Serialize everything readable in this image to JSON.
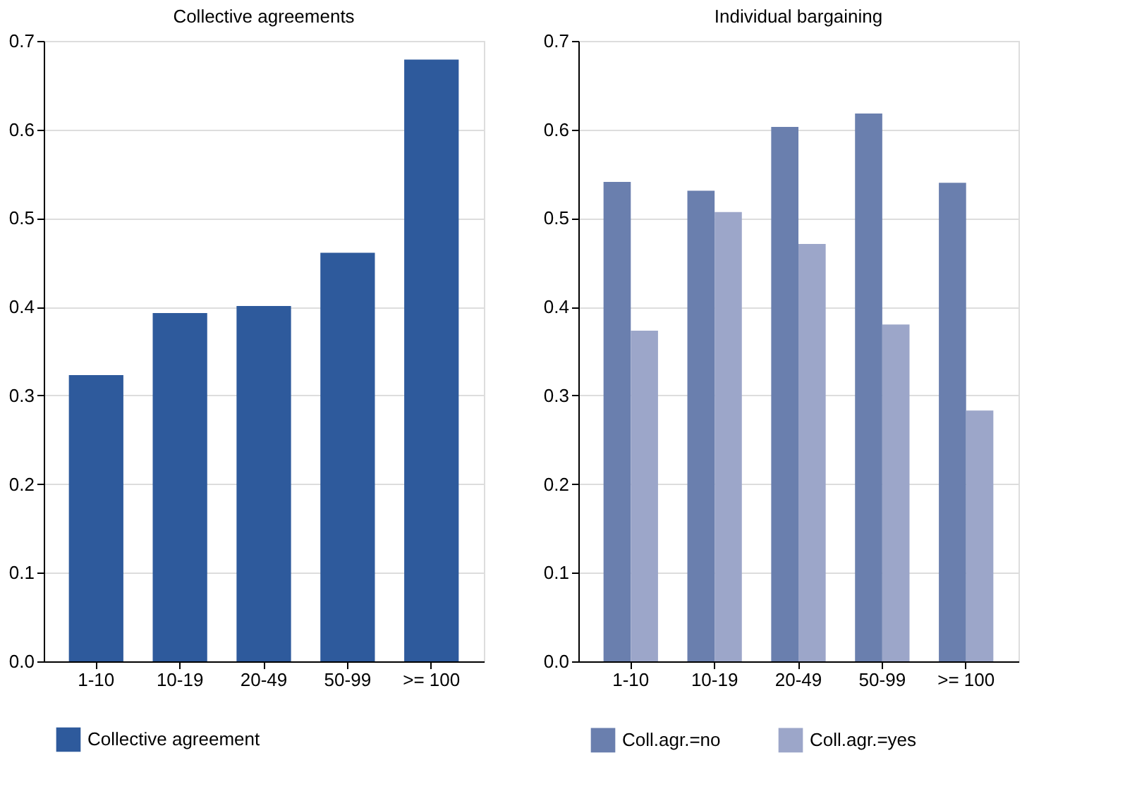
{
  "chart_data": [
    {
      "type": "bar",
      "title": "Collective agreements",
      "categories": [
        "1-10",
        "10-19",
        "20-49",
        "50-99",
        ">= 100"
      ],
      "series": [
        {
          "name": "Collective agreement",
          "color": "#2e5a9c",
          "values": [
            0.323,
            0.393,
            0.401,
            0.461,
            0.679
          ]
        }
      ],
      "ylim": [
        0,
        0.7
      ],
      "yticks": [
        {
          "value": 0,
          "label": "0.0"
        },
        {
          "value": 0.1,
          "label": "0.1"
        },
        {
          "value": 0.2,
          "label": "0.2"
        },
        {
          "value": 0.3,
          "label": "0.3"
        },
        {
          "value": 0.4,
          "label": "0.4"
        },
        {
          "value": 0.5,
          "label": "0.5"
        },
        {
          "value": 0.6,
          "label": "0.6"
        },
        {
          "value": 0.7,
          "label": "0.7"
        }
      ],
      "grid": "y",
      "legend": "bottom"
    },
    {
      "type": "bar",
      "title": "Individual bargaining",
      "categories": [
        "1-10",
        "10-19",
        "20-49",
        "50-99",
        ">= 100"
      ],
      "series": [
        {
          "name": "Coll.agr.=no",
          "color": "#6a7fae",
          "values": [
            0.541,
            0.531,
            0.603,
            0.618,
            0.54
          ]
        },
        {
          "name": "Coll.agr.=yes",
          "color": "#9ca6c9",
          "values": [
            0.373,
            0.507,
            0.471,
            0.38,
            0.283
          ]
        }
      ],
      "ylim": [
        0,
        0.7
      ],
      "yticks": [
        {
          "value": 0,
          "label": "0.0"
        },
        {
          "value": 0.1,
          "label": "0.1"
        },
        {
          "value": 0.2,
          "label": "0.2"
        },
        {
          "value": 0.3,
          "label": "0.3"
        },
        {
          "value": 0.4,
          "label": "0.4"
        },
        {
          "value": 0.5,
          "label": "0.5"
        },
        {
          "value": 0.6,
          "label": "0.6"
        },
        {
          "value": 0.7,
          "label": "0.7"
        }
      ],
      "grid": "y",
      "legend": "bottom"
    }
  ]
}
